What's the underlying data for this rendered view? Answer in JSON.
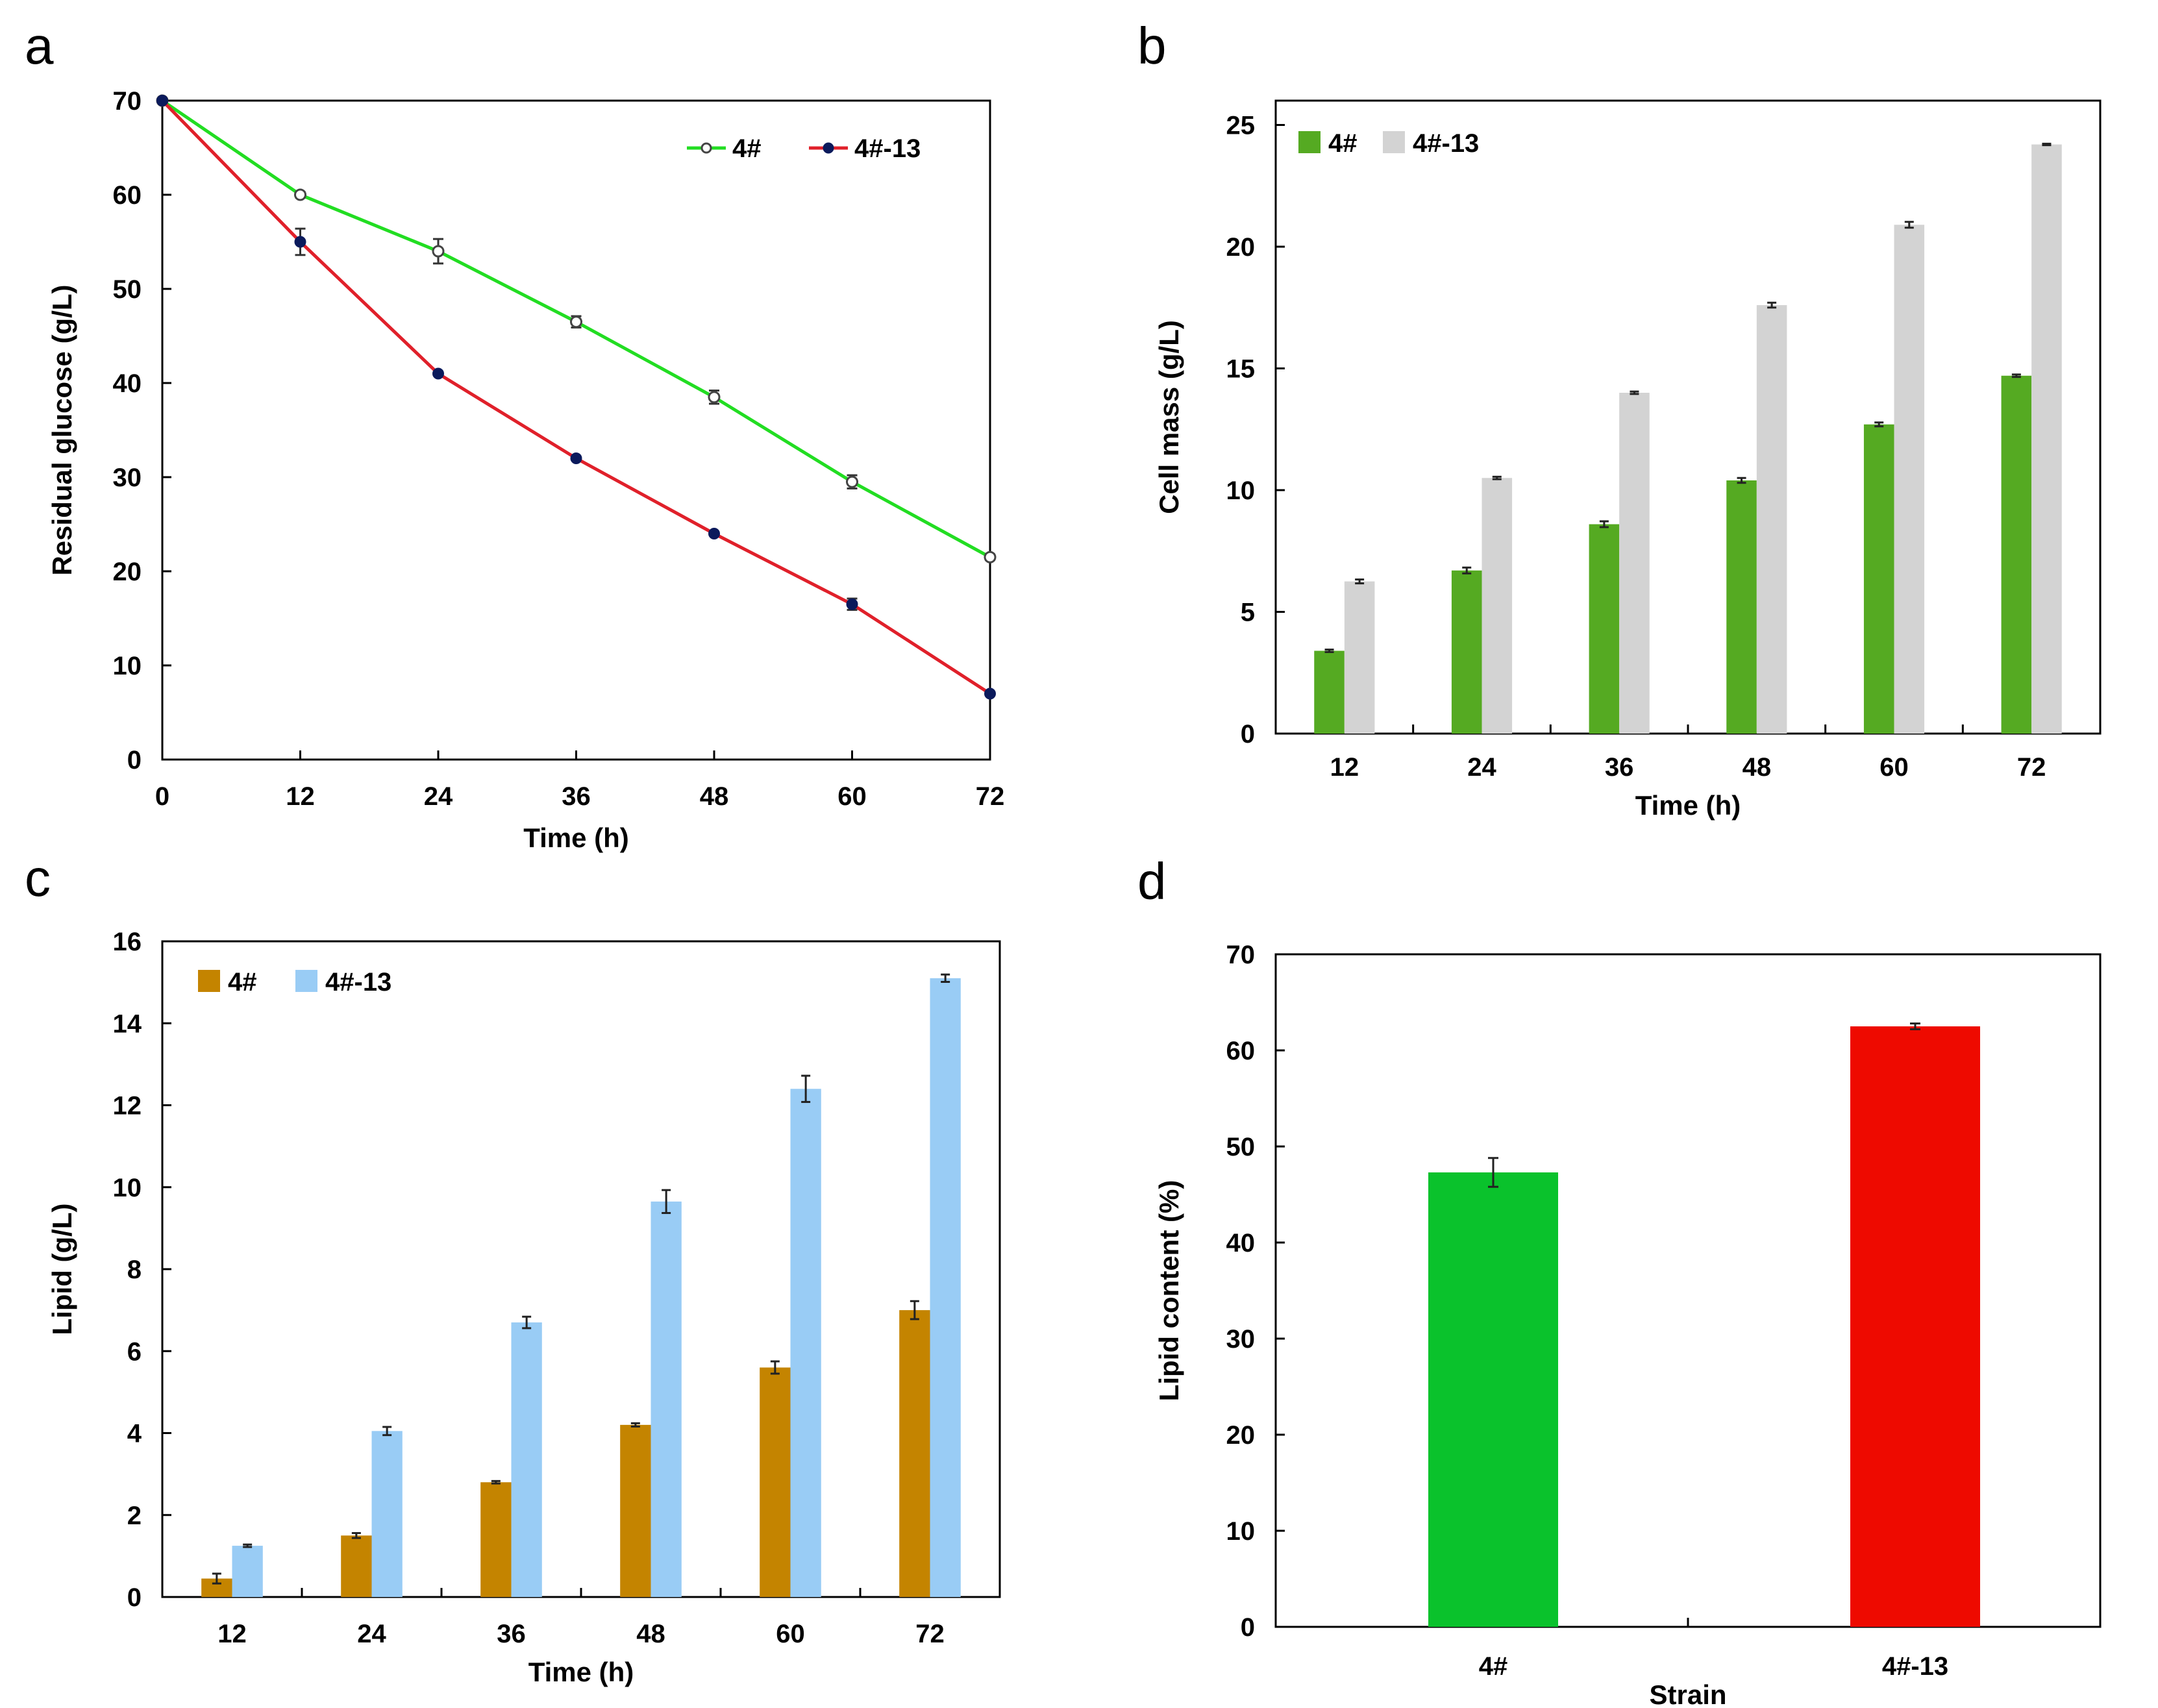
{
  "chart_data": [
    {
      "id": "a",
      "panel_label": "a",
      "type": "line",
      "xlabel": "Time (h)",
      "ylabel": "Residual glucose (g/L)",
      "x": [
        0,
        12,
        24,
        36,
        48,
        60,
        72
      ],
      "xticks": [
        0,
        12,
        24,
        36,
        48,
        60,
        72
      ],
      "xlim": [
        0,
        72
      ],
      "ylim": [
        0,
        70
      ],
      "yticks": [
        0,
        10,
        20,
        30,
        40,
        50,
        60,
        70
      ],
      "legend_position": "top-right",
      "series": [
        {
          "name": "4#",
          "color": "#22dd22",
          "marker": "open-circle",
          "values": [
            70,
            60,
            54,
            46.5,
            38.5,
            29.5,
            21.5
          ],
          "errors": [
            0,
            0.3,
            1.3,
            0.6,
            0.7,
            0.7,
            0.3
          ]
        },
        {
          "name": "4#-13",
          "color": "#e0202a",
          "marker": "filled-circle",
          "values": [
            70,
            55,
            41,
            32,
            24,
            16.5,
            7
          ],
          "errors": [
            0,
            1.4,
            0,
            0,
            0,
            0.6,
            0
          ]
        }
      ]
    },
    {
      "id": "b",
      "panel_label": "b",
      "type": "bar",
      "xlabel": "Time (h)",
      "ylabel": "Cell mass (g/L)",
      "categories": [
        "12",
        "24",
        "36",
        "48",
        "60",
        "72"
      ],
      "ylim": [
        0,
        26
      ],
      "yticks": [
        0,
        5,
        10,
        15,
        20,
        25
      ],
      "legend_position": "top-left",
      "series": [
        {
          "name": "4#",
          "color": "#55aa22",
          "values": [
            3.4,
            6.7,
            8.6,
            10.4,
            12.7,
            14.7
          ],
          "errors": [
            0.05,
            0.12,
            0.12,
            0.1,
            0.08,
            0.05
          ]
        },
        {
          "name": "4#-13",
          "color": "#d3d3d3",
          "values": [
            6.25,
            10.5,
            14,
            17.6,
            20.9,
            24.2
          ],
          "errors": [
            0.08,
            0.05,
            0.05,
            0.1,
            0.12,
            0.03
          ]
        }
      ]
    },
    {
      "id": "c",
      "panel_label": "c",
      "type": "bar",
      "xlabel": "Time (h)",
      "ylabel": "Lipid (g/L)",
      "categories": [
        "12",
        "24",
        "36",
        "48",
        "60",
        "72"
      ],
      "ylim": [
        0,
        16
      ],
      "yticks": [
        0,
        2,
        4,
        6,
        8,
        10,
        12,
        14,
        16
      ],
      "legend_position": "top-left",
      "series": [
        {
          "name": "4#",
          "color": "#c48400",
          "values": [
            0.45,
            1.5,
            2.8,
            4.2,
            5.6,
            7.0
          ],
          "errors": [
            0.12,
            0.06,
            0.03,
            0.04,
            0.15,
            0.22
          ]
        },
        {
          "name": "4#-13",
          "color": "#99ccf5",
          "values": [
            1.25,
            4.05,
            6.7,
            9.65,
            12.4,
            15.1
          ],
          "errors": [
            0.03,
            0.1,
            0.14,
            0.28,
            0.32,
            0.09
          ]
        }
      ]
    },
    {
      "id": "d",
      "panel_label": "d",
      "type": "bar",
      "xlabel": "Strain",
      "ylabel": "Lipid content (%)",
      "categories": [
        "4#",
        "4#-13"
      ],
      "ylim": [
        0,
        70
      ],
      "yticks": [
        0,
        10,
        20,
        30,
        40,
        50,
        60,
        70
      ],
      "values": [
        47.3,
        62.5
      ],
      "errors": [
        1.5,
        0.3
      ],
      "colors": [
        "#0ac22c",
        "#ee0a00"
      ]
    }
  ]
}
